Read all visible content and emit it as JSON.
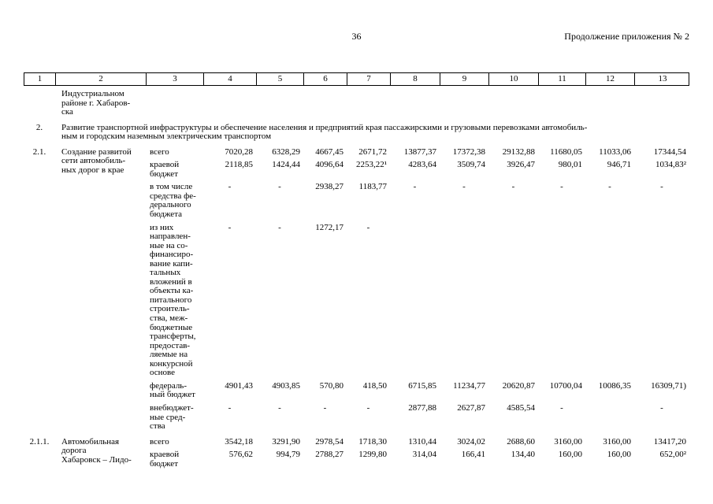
{
  "page": {
    "number": "36",
    "continuation": "Продолжение приложения № 2"
  },
  "table": {
    "column_numbers": [
      "1",
      "2",
      "3",
      "4",
      "5",
      "6",
      "7",
      "8",
      "9",
      "10",
      "11",
      "12",
      "13"
    ],
    "carryover": {
      "name_lines": [
        "Индустриальном",
        "районе г. Хабаров-",
        "ска"
      ]
    },
    "section2": {
      "num": "2.",
      "text_lines": [
        "Развитие транспортной инфраструктуры и обеспечение населения и предприятий края пассажирскими и грузовыми перевозками автомобиль-",
        "ным и городским наземным электрическим транспортом"
      ]
    },
    "blocks": [
      {
        "num": "2.1.",
        "name_lines": [
          "Создание развитой",
          "сети автомобиль-",
          "ных дорог в крае"
        ],
        "rows": [
          {
            "label_lines": [
              "всего"
            ],
            "values": [
              "7020,28",
              "6328,29",
              "4667,45",
              "2671,72",
              "13877,37",
              "17372,38",
              "29132,88",
              "11680,05",
              "11033,06",
              "17344,54"
            ]
          },
          {
            "label_lines": [
              "краевой",
              "бюджет"
            ],
            "values": [
              "2118,85",
              "1424,44",
              "4096,64",
              "2253,22¹",
              "4283,64",
              "3509,74",
              "3926,47",
              "980,01",
              "946,71",
              "1034,83²"
            ]
          },
          {
            "label_lines": [
              "в том числе",
              "средства фе-",
              "дерального",
              "бюджета"
            ],
            "values": [
              "-",
              "-",
              "2938,27",
              "1183,77",
              "-",
              "-",
              "-",
              "-",
              "-",
              "-"
            ]
          },
          {
            "label_lines": [
              "из них",
              "направлен-",
              "ные на со-",
              "финансиро-",
              "вание капи-",
              "тальных",
              "вложений в",
              "объекты ка-",
              "питального",
              "строитель-",
              "ства, меж-",
              "бюджетные",
              "трансферты,",
              "предостав-",
              "ляемые на",
              "конкурсной",
              "основе"
            ],
            "values": [
              "-",
              "-",
              "1272,17",
              "-",
              "",
              "",
              "",
              "",
              "",
              ""
            ]
          },
          {
            "label_lines": [
              "федераль-",
              "ный бюджет"
            ],
            "values": [
              "4901,43",
              "4903,85",
              "570,80",
              "418,50",
              "6715,85",
              "11234,77",
              "20620,87",
              "10700,04",
              "10086,35",
              "16309,71)"
            ]
          },
          {
            "label_lines": [
              "внебюджет-",
              "ные сред-",
              "ства"
            ],
            "values": [
              "-",
              "-",
              "-",
              "-",
              "2877,88",
              "2627,87",
              "4585,54",
              "-",
              "",
              "-"
            ]
          }
        ]
      },
      {
        "num": "2.1.1.",
        "name_lines": [
          "Автомобильная",
          "дорога",
          "Хабаровск – Лидо-"
        ],
        "rows": [
          {
            "label_lines": [
              "всего"
            ],
            "values": [
              "3542,18",
              "3291,90",
              "2978,54",
              "1718,30",
              "1310,44",
              "3024,02",
              "2688,60",
              "3160,00",
              "3160,00",
              "13417,20"
            ]
          },
          {
            "label_lines": [
              "краевой",
              "бюджет"
            ],
            "values": [
              "576,62",
              "994,79",
              "2788,27",
              "1299,80",
              "314,04",
              "166,41",
              "134,40",
              "160,00",
              "160,00",
              "652,00²"
            ]
          }
        ]
      }
    ]
  }
}
